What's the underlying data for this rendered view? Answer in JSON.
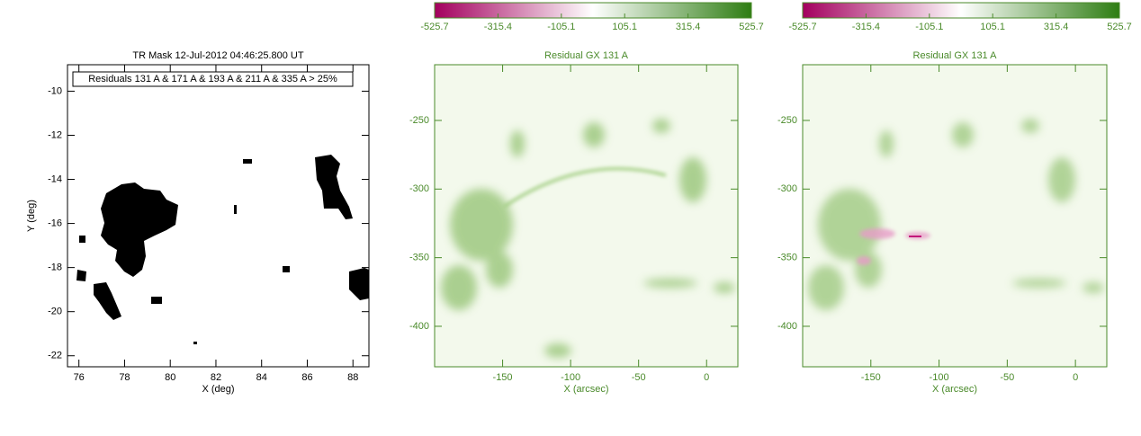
{
  "chart_data": [
    {
      "type": "mask",
      "title": "TR Mask 12-Jul-2012 04:46:25.800 UT",
      "legend": "Residuals 131 A & 171 A & 193 A & 211 A & 335 A > 25%",
      "xlabel": "X (deg)",
      "ylabel": "Y (deg)",
      "axis_color": "#000000",
      "xlim": [
        75.5,
        88.7
      ],
      "ylim": [
        -22.5,
        -8.8
      ],
      "xticks": [
        76,
        78,
        80,
        82,
        84,
        86,
        88
      ],
      "yticks": [
        -22,
        -20,
        -18,
        -16,
        -14,
        -12,
        -10
      ]
    },
    {
      "type": "image",
      "title": "Residual GX 131 A",
      "xlabel": "X (arcsec)",
      "axis_color": "#4a8a2a",
      "xlim": [
        -200,
        23
      ],
      "ylim": [
        -429.5,
        -209.4
      ],
      "xticks": [
        -150,
        -100,
        -50,
        0
      ],
      "yticks": [
        -400,
        -350,
        -300,
        -250
      ],
      "colorbar": {
        "lim": [
          -525.7,
          525.7
        ],
        "ticks": [
          -525.7,
          -315.4,
          -105.1,
          105.1,
          315.4,
          525.7
        ],
        "colors": [
          "#a3005e",
          "#ffffff",
          "#2e7d12"
        ]
      }
    },
    {
      "type": "image",
      "title": "Residual GX 131 A",
      "xlabel": "X (arcsec)",
      "axis_color": "#4a8a2a",
      "xlim": [
        -200,
        23
      ],
      "ylim": [
        -429.5,
        -209.4
      ],
      "xticks": [
        -150,
        -100,
        -50,
        0
      ],
      "yticks": [
        -400,
        -350,
        -300,
        -250
      ],
      "colorbar": {
        "lim": [
          -525.7,
          525.7
        ],
        "ticks": [
          -525.7,
          -315.4,
          -105.1,
          105.1,
          315.4,
          525.7
        ],
        "colors": [
          "#a3005e",
          "#ffffff",
          "#2e7d12"
        ]
      }
    }
  ]
}
